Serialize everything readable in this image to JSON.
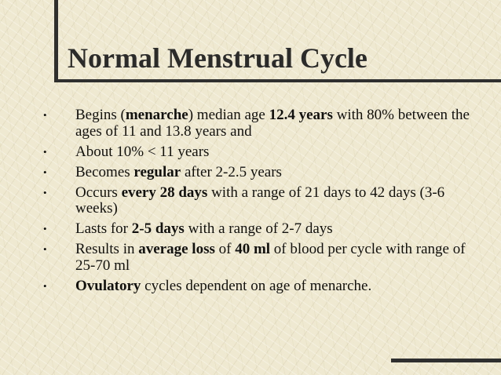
{
  "slide": {
    "title": "Normal Menstrual Cycle",
    "bullet_glyph": "•",
    "bullets": [
      {
        "parts": [
          {
            "text": "Begins (",
            "bold": false
          },
          {
            "text": "menarche",
            "bold": true
          },
          {
            "text": ") median age ",
            "bold": false
          },
          {
            "text": "12.4 years",
            "bold": true
          },
          {
            "text": " with 80% between the ages of 11 and 13.8 years and",
            "bold": false
          }
        ]
      },
      {
        "parts": [
          {
            "text": "About 10% < 11 years",
            "bold": false
          }
        ]
      },
      {
        "parts": [
          {
            "text": "Becomes ",
            "bold": false
          },
          {
            "text": "regular",
            "bold": true
          },
          {
            "text": " after 2-2.5 years",
            "bold": false
          }
        ]
      },
      {
        "parts": [
          {
            "text": "Occurs ",
            "bold": false
          },
          {
            "text": "every 28 days",
            "bold": true
          },
          {
            "text": " with a range of 21 days to 42 days (3-6 weeks)",
            "bold": false
          }
        ]
      },
      {
        "parts": [
          {
            "text": "Lasts for ",
            "bold": false
          },
          {
            "text": "2-5 days",
            "bold": true
          },
          {
            "text": " with a range of 2-7 days",
            "bold": false
          }
        ]
      },
      {
        "parts": [
          {
            "text": "Results in ",
            "bold": false
          },
          {
            "text": "average loss",
            "bold": true
          },
          {
            "text": " of ",
            "bold": false
          },
          {
            "text": "40 ml",
            "bold": true
          },
          {
            "text": " of blood per cycle with range of 25-70 ml",
            "bold": false
          }
        ]
      },
      {
        "parts": [
          {
            "text": "Ovulatory",
            "bold": true
          },
          {
            "text": " cycles dependent on age of menarche.",
            "bold": false
          }
        ]
      }
    ]
  }
}
